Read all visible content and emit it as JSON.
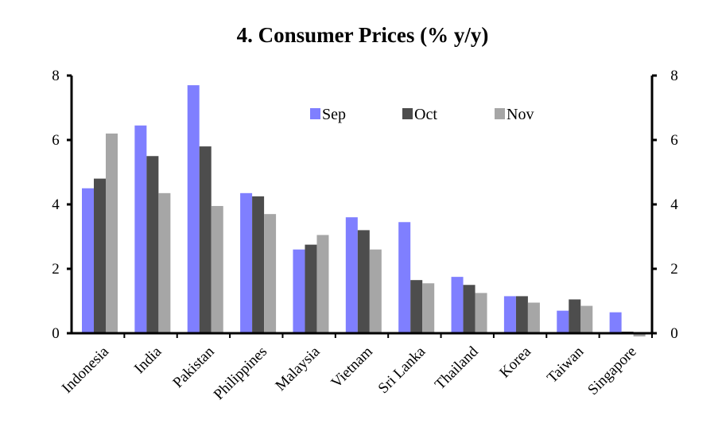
{
  "chart_data": {
    "type": "bar",
    "title": "4. Consumer Prices (% y/y)",
    "xlabel": "",
    "ylabel": "",
    "ylim": [
      0,
      8
    ],
    "y_ticks": [
      "0",
      "2",
      "4",
      "6",
      "8"
    ],
    "y_tick_values": [
      0,
      2,
      4,
      6,
      8
    ],
    "legend_position": "top-right",
    "categories": [
      "Indonesia",
      "India",
      "Pakistan",
      "Philippines",
      "Malaysia",
      "Vietnam",
      "Sri Lanka",
      "Thailand",
      "Korea",
      "Taiwan",
      "Singapore"
    ],
    "series": [
      {
        "name": "Sep",
        "color": "#7f7fff",
        "values": [
          4.5,
          6.45,
          7.7,
          4.35,
          2.6,
          3.6,
          3.45,
          1.75,
          1.15,
          0.7,
          0.65
        ]
      },
      {
        "name": "Oct",
        "color": "#4d4d4d",
        "values": [
          4.8,
          5.5,
          5.8,
          4.25,
          2.75,
          3.2,
          1.65,
          1.5,
          1.15,
          1.05,
          0.05
        ]
      },
      {
        "name": "Nov",
        "color": "#a6a6a6",
        "values": [
          6.2,
          4.35,
          3.95,
          3.7,
          3.05,
          2.6,
          1.55,
          1.25,
          0.95,
          0.85,
          -0.1
        ]
      }
    ]
  }
}
